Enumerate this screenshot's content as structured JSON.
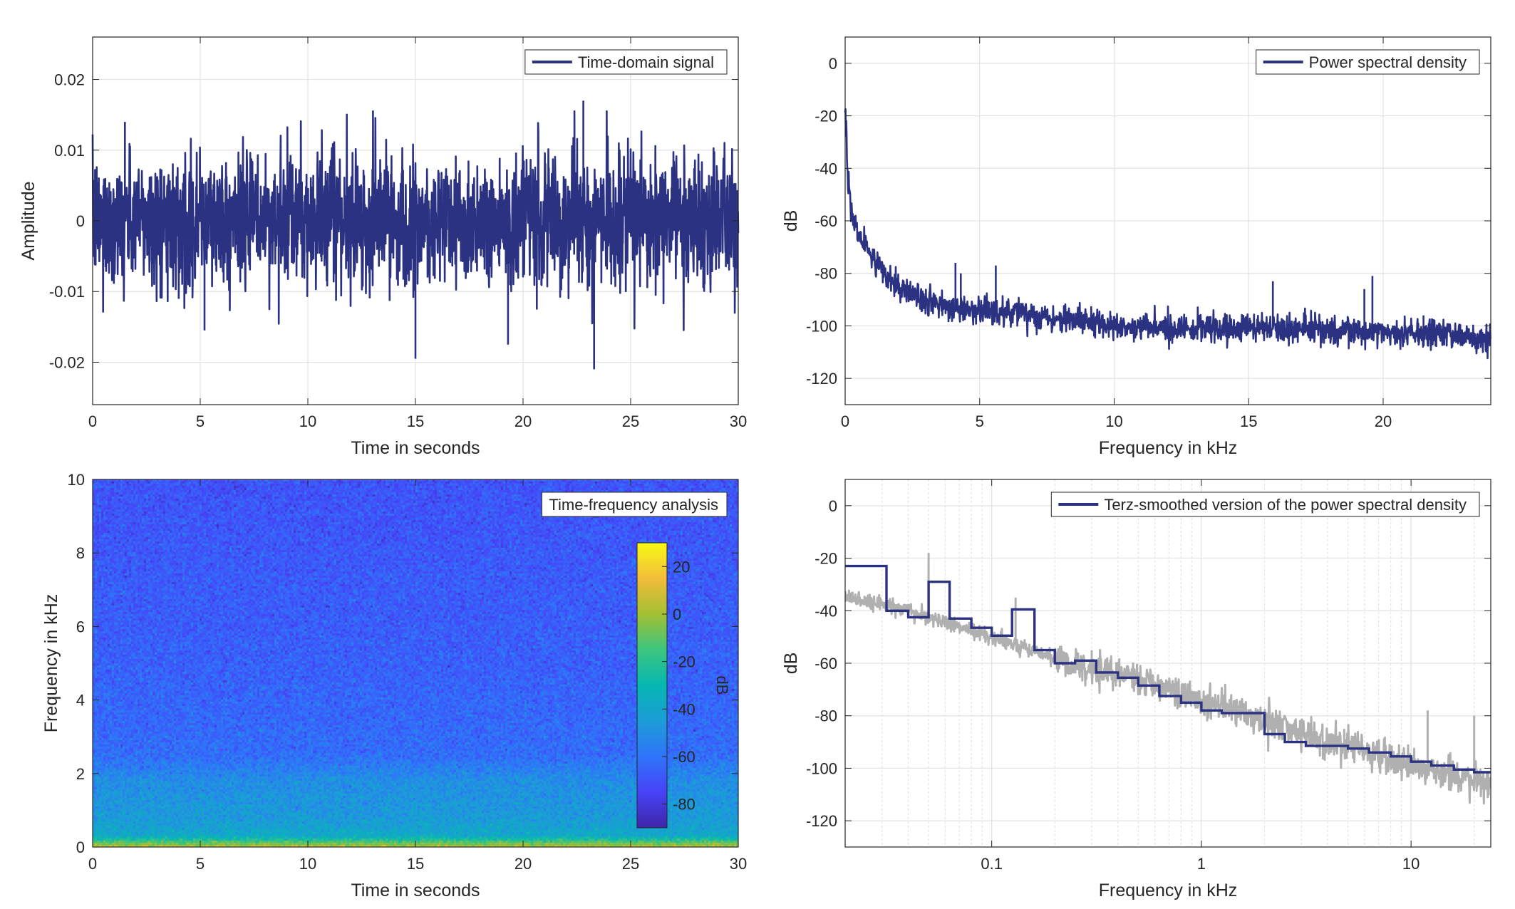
{
  "colors": {
    "series": "#2b3282",
    "raw_psd": "#b0b0b0",
    "grid": "#e3e3e3",
    "axis": "#262626",
    "colormap": [
      "#3e26a8",
      "#4743f7",
      "#2f74fa",
      "#1c9cd8",
      "#06b7b2",
      "#3cc57f",
      "#a2c033",
      "#f2bc3a",
      "#f8fb14"
    ]
  },
  "chart_data": [
    {
      "id": "time_domain",
      "type": "line",
      "xlabel": "Time in seconds",
      "ylabel": "Amplitude",
      "xlim": [
        0,
        30
      ],
      "ylim": [
        -0.026,
        0.026
      ],
      "xticks": [
        0,
        5,
        10,
        15,
        20,
        25,
        30
      ],
      "yticks": [
        -0.02,
        -0.01,
        0,
        0.01,
        0.02
      ],
      "ytick_labels": [
        "-0.02",
        "-0.01",
        "0",
        "0.01",
        "0.02"
      ],
      "grid": true,
      "legend_position": "top-right",
      "series": [
        {
          "name": "Time-domain signal",
          "style": "noise",
          "envelope_typical": 0.008,
          "peaks": [
            {
              "x": 15.0,
              "y": -0.0195
            },
            {
              "x": 22.8,
              "y": 0.017
            },
            {
              "x": 23.3,
              "y": -0.021
            },
            {
              "x": 1.5,
              "y": 0.014
            },
            {
              "x": 5.2,
              "y": -0.0155
            },
            {
              "x": 19.3,
              "y": -0.0175
            }
          ]
        }
      ]
    },
    {
      "id": "psd",
      "type": "line",
      "xlabel": "Frequency in kHz",
      "ylabel": "dB",
      "xlim": [
        0,
        24
      ],
      "ylim": [
        -130,
        10
      ],
      "xticks": [
        0,
        5,
        10,
        15,
        20
      ],
      "yticks": [
        -120,
        -100,
        -80,
        -60,
        -40,
        -20,
        0
      ],
      "grid": true,
      "legend_position": "top-right",
      "series": [
        {
          "name": "Power spectral density",
          "trend": [
            [
              0,
              -15
            ],
            [
              0.1,
              -45
            ],
            [
              0.3,
              -60
            ],
            [
              0.6,
              -68
            ],
            [
              1,
              -74
            ],
            [
              1.5,
              -80
            ],
            [
              2,
              -85
            ],
            [
              3,
              -91
            ],
            [
              4,
              -93
            ],
            [
              5,
              -94
            ],
            [
              6,
              -95
            ],
            [
              8,
              -97
            ],
            [
              10,
              -100
            ],
            [
              12,
              -101
            ],
            [
              14,
              -101
            ],
            [
              16,
              -101
            ],
            [
              18,
              -102
            ],
            [
              20,
              -102
            ],
            [
              22,
              -103
            ],
            [
              24,
              -105
            ]
          ],
          "spikes": [
            [
              4.1,
              -76
            ],
            [
              4.3,
              -80
            ],
            [
              5.6,
              -77
            ],
            [
              15.9,
              -83
            ],
            [
              19.3,
              -86
            ],
            [
              19.6,
              -81
            ],
            [
              21.5,
              -96
            ]
          ]
        }
      ]
    },
    {
      "id": "spectrogram",
      "type": "heatmap",
      "xlabel": "Time in seconds",
      "ylabel": "Frequency in kHz",
      "xlim": [
        0,
        30
      ],
      "ylim": [
        0,
        10
      ],
      "xticks": [
        0,
        5,
        10,
        15,
        20,
        25,
        30
      ],
      "yticks": [
        0,
        2,
        4,
        6,
        8,
        10
      ],
      "title_box": "Time-frequency analysis",
      "colorbar": {
        "label": "dB",
        "lim": [
          -90,
          30
        ],
        "ticks": [
          -80,
          -60,
          -40,
          -20,
          0,
          20
        ],
        "position": "inside-right"
      },
      "level_by_frequency": [
        [
          0,
          5
        ],
        [
          0.08,
          -5
        ],
        [
          0.3,
          -38
        ],
        [
          0.8,
          -45
        ],
        [
          1.8,
          -50
        ],
        [
          2.5,
          -62
        ],
        [
          5,
          -66
        ],
        [
          10,
          -70
        ]
      ]
    },
    {
      "id": "terz_psd",
      "type": "line",
      "xlabel": "Frequency in kHz",
      "ylabel": "dB",
      "xscale": "log",
      "xlim": [
        0.02,
        24
      ],
      "ylim": [
        -130,
        10
      ],
      "xticks": [
        0.1,
        1,
        10
      ],
      "xtick_labels": [
        "0.1",
        "1",
        "10"
      ],
      "yticks": [
        -120,
        -100,
        -80,
        -60,
        -40,
        -20,
        0
      ],
      "grid": true,
      "legend_position": "top-right",
      "series": [
        {
          "name": "",
          "role": "raw psd (gray)",
          "trend": [
            [
              0.02,
              -35
            ],
            [
              0.04,
              -40
            ],
            [
              0.06,
              -44
            ],
            [
              0.1,
              -50
            ],
            [
              0.2,
              -58
            ],
            [
              0.3,
              -62
            ],
            [
              0.5,
              -66
            ],
            [
              1,
              -74
            ],
            [
              2,
              -82
            ],
            [
              3,
              -87
            ],
            [
              5,
              -92
            ],
            [
              10,
              -99
            ],
            [
              20,
              -104
            ],
            [
              24,
              -106
            ]
          ],
          "spikes": [
            [
              0.05,
              -18
            ],
            [
              0.13,
              -35
            ],
            [
              0.3,
              -55
            ],
            [
              4.8,
              -85
            ],
            [
              7.5,
              -88
            ],
            [
              12,
              -78
            ],
            [
              20,
              -80
            ]
          ]
        },
        {
          "name": "Terz-smoothed version of the power spectral density",
          "steps": [
            [
              0.02,
              -23
            ],
            [
              0.025,
              -23
            ],
            [
              0.0315,
              -40
            ],
            [
              0.04,
              -42.5
            ],
            [
              0.05,
              -29
            ],
            [
              0.063,
              -43
            ],
            [
              0.08,
              -46.5
            ],
            [
              0.1,
              -49.5
            ],
            [
              0.125,
              -39.5
            ],
            [
              0.16,
              -55
            ],
            [
              0.2,
              -60
            ],
            [
              0.25,
              -59
            ],
            [
              0.315,
              -63.5
            ],
            [
              0.4,
              -65.5
            ],
            [
              0.5,
              -68.5
            ],
            [
              0.63,
              -72.5
            ],
            [
              0.8,
              -75
            ],
            [
              1,
              -78
            ],
            [
              1.25,
              -79
            ],
            [
              1.6,
              -79
            ],
            [
              2,
              -87
            ],
            [
              2.5,
              -90
            ],
            [
              3.15,
              -91.5
            ],
            [
              4,
              -91.5
            ],
            [
              5,
              -92.5
            ],
            [
              6.3,
              -94
            ],
            [
              8,
              -95.5
            ],
            [
              10,
              -97.5
            ],
            [
              12.5,
              -99
            ],
            [
              16,
              -100.5
            ],
            [
              20,
              -101.5
            ],
            [
              24,
              -101.5
            ]
          ]
        }
      ]
    }
  ]
}
